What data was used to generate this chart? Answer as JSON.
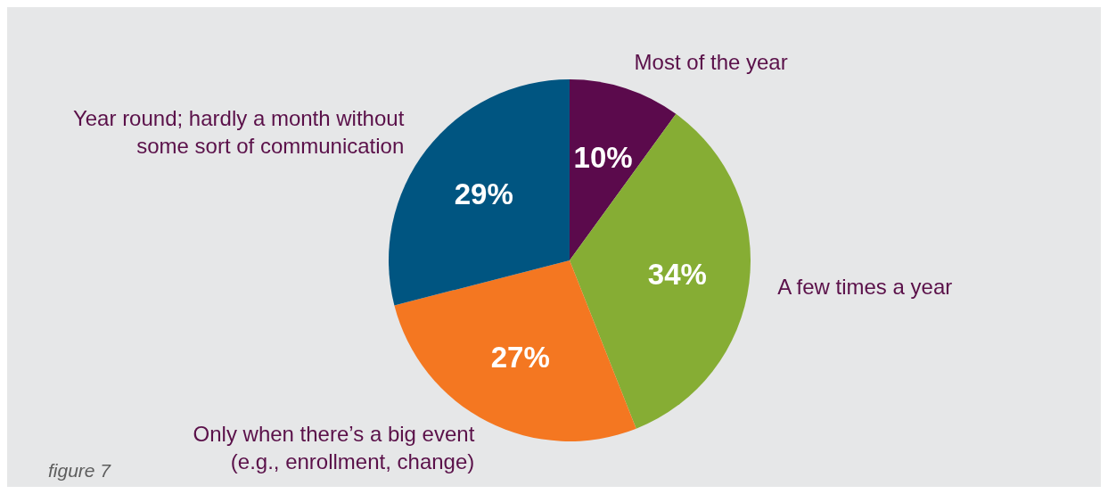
{
  "chart_data": {
    "type": "pie",
    "categories": [
      "Most of the year",
      "A few times a year",
      "Only when there’s a big event (e.g., enrollment, change)",
      "Year round; hardly a month without some sort of communication"
    ],
    "values": [
      10,
      34,
      27,
      29
    ],
    "colors": [
      "#5b0a4c",
      "#86ad34",
      "#f47721",
      "#005581"
    ],
    "value_labels": [
      "10%",
      "34%",
      "27%",
      "29%"
    ],
    "annotations": [
      "figure 7"
    ]
  }
}
